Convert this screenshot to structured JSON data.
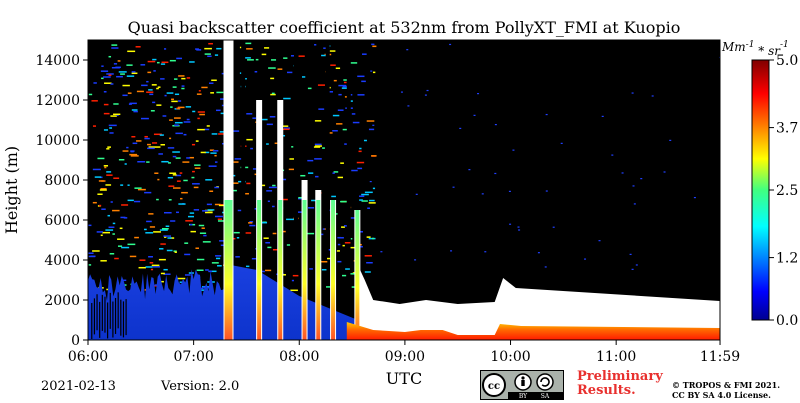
{
  "chart_data": {
    "type": "heatmap",
    "title": "Quasi backscatter coefficient at 532nm from PollyXT_FMI at Kuopio",
    "xlabel": "UTC",
    "ylabel": "Height (m)",
    "x_ticks": [
      "06:00",
      "07:00",
      "08:00",
      "09:00",
      "10:00",
      "11:00",
      "11:59"
    ],
    "y_ticks": [
      0,
      2000,
      4000,
      6000,
      8000,
      10000,
      12000,
      14000
    ],
    "ylim": [
      0,
      15000
    ],
    "xlim_hours": [
      6.0,
      11.983
    ],
    "colorbar": {
      "label": "Mm^-1 * sr^-1",
      "ticks": [
        "0.0",
        "1.2",
        "2.5",
        "3.7",
        "5.0"
      ],
      "range": [
        0.0,
        5.0
      ],
      "colormap": "jet"
    },
    "features": {
      "cloud_columns_hours": [
        7.33,
        7.62,
        7.82,
        8.05,
        8.18,
        8.32,
        8.55
      ],
      "boundary_layer_top_m": [
        {
          "hour": 6.0,
          "height": 2600
        },
        {
          "hour": 7.3,
          "height": 3000
        },
        {
          "hour": 8.6,
          "height": 800
        },
        {
          "hour": 9.5,
          "height": 200
        },
        {
          "hour": 9.85,
          "height": 200
        },
        {
          "hour": 9.95,
          "height": 700
        },
        {
          "hour": 11.98,
          "height": 600
        }
      ],
      "signal_cutoff_after_hour": 8.6,
      "no_data_color": "#000000"
    }
  },
  "footer": {
    "date": "2021-02-13",
    "version": "Version: 2.0",
    "preliminary_line1": "Preliminary",
    "preliminary_line2": "Results.",
    "copyright_line1": "© TROPOS & FMI 2021.",
    "copyright_line2": "CC BY SA 4.0 License.",
    "cc_text": "cc",
    "by_text": "BY",
    "sa_text": "SA"
  }
}
